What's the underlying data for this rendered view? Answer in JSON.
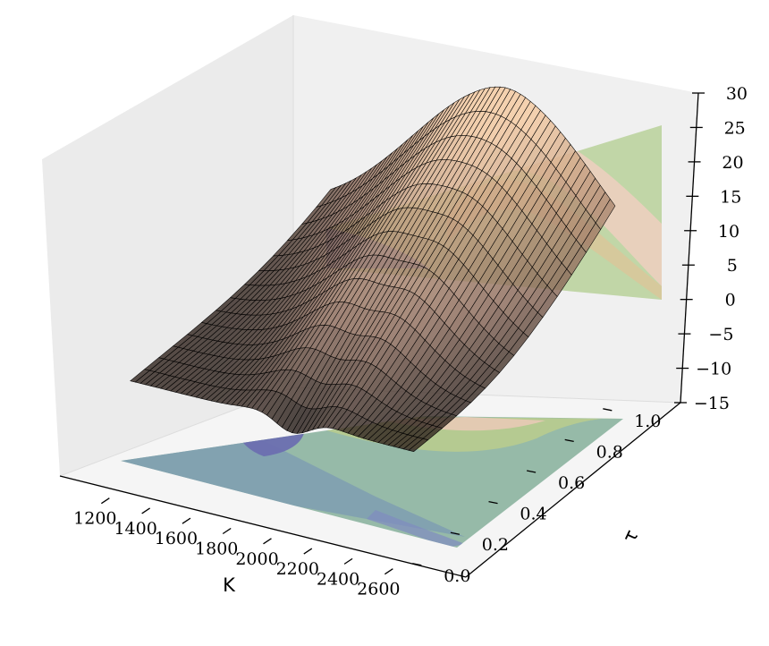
{
  "chart_data": {
    "type": "surface3d",
    "xlabel": "K",
    "ylabel": "τ",
    "zlabel": "",
    "x_ticks": [
      "1200",
      "1400",
      "1600",
      "1800",
      "2000",
      "2200",
      "2400",
      "2600"
    ],
    "y_ticks": [
      "0.0",
      "0.2",
      "0.4",
      "0.6",
      "0.8",
      "1.0"
    ],
    "z_ticks": [
      "−15",
      "−10",
      "−5",
      "0",
      "5",
      "10",
      "15",
      "20",
      "25",
      "30"
    ],
    "xlim": [
      1150,
      2650
    ],
    "ylim": [
      -0.05,
      1.15
    ],
    "zlim": [
      -15,
      30
    ],
    "surface_x_range": [
      1200,
      2600
    ],
    "surface_y_range": [
      0.05,
      1.1
    ],
    "surface_z_range": [
      -3,
      23
    ],
    "peak": {
      "x": 2050,
      "y": 1.1,
      "z": 23
    },
    "minimum": {
      "x": 2000,
      "y": 0.05,
      "z": -3
    },
    "projected_contours": [
      "floor (z=-15)",
      "back wall (x=2650)"
    ],
    "colors": {
      "surface_low": "#000000",
      "surface_mid": "#8b6a5a",
      "surface_high": "#f4c9a0",
      "mesh_lines": "#000000",
      "contour_low": "#6c78b8",
      "contour_mid": "#9cc08e",
      "contour_high": "#e8d0b8",
      "pane_side": "#ebebeb",
      "pane_back": "#f0f0f0",
      "pane_floor": "#f5f5f5"
    },
    "grid": false
  }
}
